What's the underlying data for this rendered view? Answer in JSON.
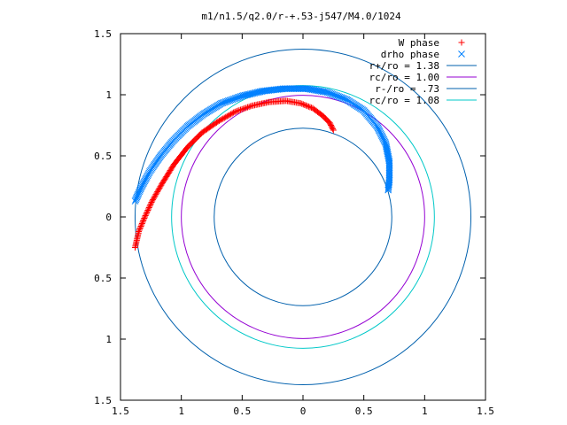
{
  "chart_data": {
    "type": "scatter",
    "title": "m1/n1.5/q2.0/r-+.53-j547/M4.0/1024",
    "xlabel": "",
    "ylabel": "",
    "xlim": [
      -1.5,
      1.5
    ],
    "ylim": [
      -1.5,
      1.5
    ],
    "x_ticks": [
      -1.5,
      -1,
      -0.5,
      0,
      0.5,
      1,
      1.5
    ],
    "y_ticks": [
      -1.5,
      -1,
      -0.5,
      0,
      0.5,
      1,
      1.5
    ],
    "x_tick_labels": [
      "1.5",
      "1",
      "0.5",
      "0",
      "0.5",
      "1",
      "1.5"
    ],
    "y_tick_labels": [
      "1.5",
      "1",
      "0.5",
      "0",
      "0.5",
      "1",
      "1.5"
    ],
    "grid": false,
    "legend_position": "top-right",
    "series": [
      {
        "name": "W phase",
        "marker": "+",
        "color": "#ff0000",
        "points": [
          [
            -1.38,
            -0.25
          ],
          [
            -1.35,
            -0.12
          ],
          [
            -1.3,
            0.0
          ],
          [
            -1.24,
            0.13
          ],
          [
            -1.16,
            0.27
          ],
          [
            -1.06,
            0.43
          ],
          [
            -0.95,
            0.57
          ],
          [
            -0.83,
            0.69
          ],
          [
            -0.7,
            0.78
          ],
          [
            -0.56,
            0.86
          ],
          [
            -0.42,
            0.91
          ],
          [
            -0.28,
            0.94
          ],
          [
            -0.14,
            0.95
          ],
          [
            -0.02,
            0.93
          ],
          [
            0.08,
            0.89
          ],
          [
            0.16,
            0.83
          ],
          [
            0.22,
            0.77
          ],
          [
            0.25,
            0.71
          ]
        ]
      },
      {
        "name": "drho phase",
        "marker": "x",
        "color": "#0080ff",
        "points": [
          [
            -1.38,
            0.13
          ],
          [
            -1.33,
            0.24
          ],
          [
            -1.26,
            0.37
          ],
          [
            -1.17,
            0.5
          ],
          [
            -1.07,
            0.62
          ],
          [
            -0.95,
            0.74
          ],
          [
            -0.82,
            0.84
          ],
          [
            -0.67,
            0.93
          ],
          [
            -0.5,
            0.99
          ],
          [
            -0.33,
            1.03
          ],
          [
            -0.15,
            1.05
          ],
          [
            0.03,
            1.05
          ],
          [
            0.2,
            1.02
          ],
          [
            0.36,
            0.96
          ],
          [
            0.5,
            0.87
          ],
          [
            0.61,
            0.74
          ],
          [
            0.68,
            0.6
          ],
          [
            0.71,
            0.45
          ],
          [
            0.71,
            0.3
          ],
          [
            0.7,
            0.22
          ]
        ]
      },
      {
        "name": "r+/ro = 1.38",
        "type": "circle",
        "radius": 1.38,
        "color": "#0060ad"
      },
      {
        "name": "rc/ro = 1.00",
        "type": "circle",
        "radius": 1.0,
        "color": "#9400d3"
      },
      {
        "name": "r-/ro = .73",
        "type": "circle",
        "radius": 0.73,
        "color": "#0060ad"
      },
      {
        "name": "rc/ro = 1.08",
        "type": "circle",
        "radius": 1.08,
        "color": "#00c8c8"
      }
    ]
  }
}
